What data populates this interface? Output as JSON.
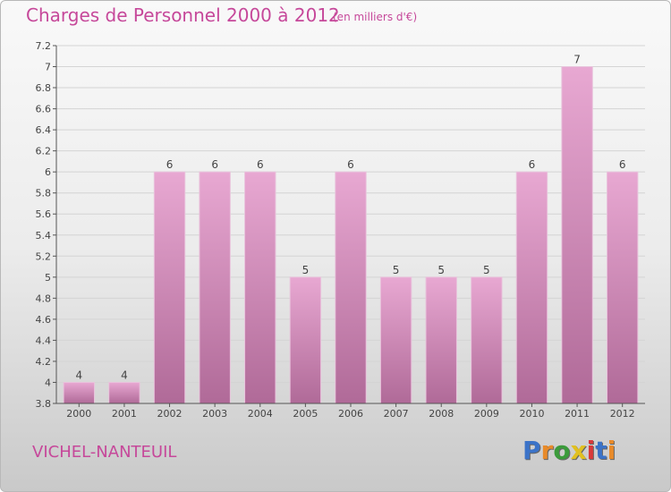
{
  "header": {
    "title": "Charges de Personnel 2000 à 2012",
    "subtitle": "(en milliers d'€)"
  },
  "footer": {
    "place": "VICHEL-NANTEUIL",
    "logo_letters": [
      "P",
      "r",
      "o",
      "x",
      "i",
      "t",
      "i"
    ],
    "logo_colors": [
      "#3b73c8",
      "#e98b2a",
      "#3b9b3b",
      "#e1c020",
      "#d93a3a",
      "#3b73c8",
      "#e98b2a"
    ]
  },
  "chart_data": {
    "type": "bar",
    "categories": [
      "2000",
      "2001",
      "2002",
      "2003",
      "2004",
      "2005",
      "2006",
      "2007",
      "2008",
      "2009",
      "2010",
      "2011",
      "2012"
    ],
    "values": [
      4,
      4,
      6,
      6,
      6,
      5,
      6,
      5,
      5,
      5,
      6,
      7,
      6
    ],
    "value_labels": [
      "4",
      "4",
      "6",
      "6",
      "6",
      "5",
      "6",
      "5",
      "5",
      "5",
      "6",
      "7",
      "6"
    ],
    "ylim": [
      3.8,
      7.2
    ],
    "yticks": [
      3.8,
      4,
      4.2,
      4.4,
      4.6,
      4.8,
      5,
      5.2,
      5.4,
      5.6,
      5.8,
      6,
      6.2,
      6.4,
      6.6,
      6.8,
      7,
      7.2
    ],
    "ytick_labels": [
      "3.8",
      "4",
      "4.2",
      "4.4",
      "4.6",
      "4.8",
      "5",
      "5.2",
      "5.4",
      "5.6",
      "5.8",
      "6",
      "6.2",
      "6.4",
      "6.6",
      "6.8",
      "7",
      "7.2"
    ],
    "bar_color_top": "#e8a8d2",
    "bar_color_bottom": "#b06a98",
    "grid": true,
    "title": "Charges de Personnel 2000 à 2012",
    "xlabel": "",
    "ylabel": ""
  }
}
